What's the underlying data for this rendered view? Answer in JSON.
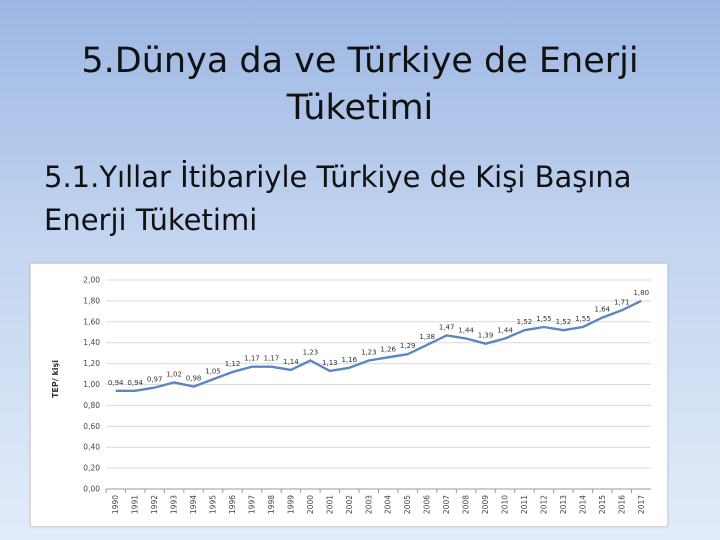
{
  "slide": {
    "title": "5.Dünya da ve Türkiye de Enerji Tüketimi",
    "subtitle": "5.1.Yıllar İtibariyle Türkiye de Kişi Başına Enerji Tüketimi"
  },
  "chart_data": {
    "type": "line",
    "ylabel": "TEP/ kişi",
    "xlabel": "",
    "ylim": [
      0,
      2.0
    ],
    "ytick_labels": [
      "0,00",
      "0,20",
      "0,40",
      "0,60",
      "0,80",
      "1,00",
      "1,20",
      "1,40",
      "1,60",
      "1,80",
      "2,00"
    ],
    "grid": true,
    "line_color": "#5b86c2",
    "x": [
      "1990",
      "1991",
      "1992",
      "1993",
      "1994",
      "1995",
      "1996",
      "1997",
      "1998",
      "1999",
      "2000",
      "2001",
      "2002",
      "2003",
      "2004",
      "2005",
      "2006",
      "2007",
      "2008",
      "2009",
      "2010",
      "2011",
      "2012",
      "2013",
      "2014",
      "2015",
      "2016",
      "2017"
    ],
    "values": [
      0.94,
      0.94,
      0.97,
      1.02,
      0.98,
      1.05,
      1.12,
      1.17,
      1.17,
      1.14,
      1.23,
      1.13,
      1.16,
      1.23,
      1.26,
      1.29,
      1.38,
      1.47,
      1.44,
      1.39,
      1.44,
      1.52,
      1.55,
      1.52,
      1.55,
      1.64,
      1.71,
      1.8
    ],
    "data_labels": [
      "0,94",
      "0,94",
      "0,97",
      "1,02",
      "0,98",
      "1,05",
      "1,12",
      "1,17",
      "1,17",
      "1,14",
      "1,23",
      "1,13",
      "1,16",
      "1,23",
      "1,26",
      "1,29",
      "1,38",
      "1,47",
      "1,44",
      "1,39",
      "1,44",
      "1,52",
      "1,55",
      "1,52",
      "1,55",
      "1,64",
      "1,71",
      "1,80"
    ]
  }
}
